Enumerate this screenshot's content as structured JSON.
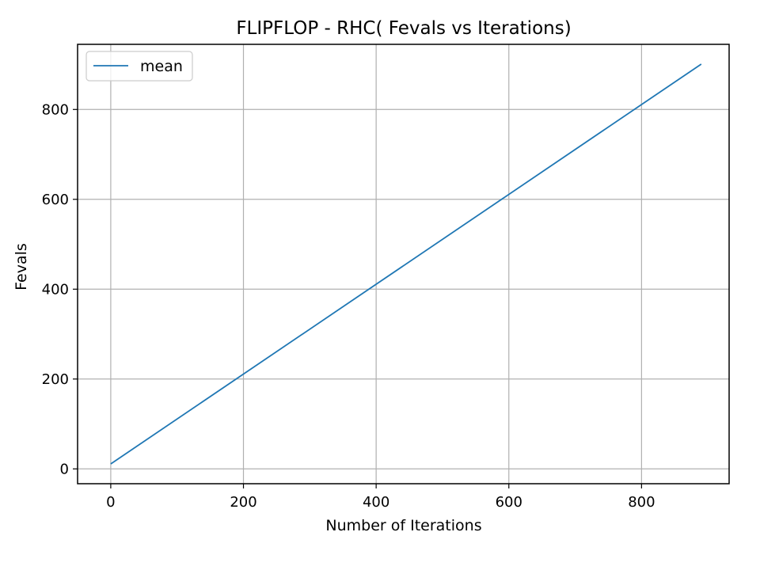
{
  "chart_data": {
    "type": "line",
    "title": "FLIPFLOP - RHC( Fevals vs Iterations)",
    "xlabel": "Number of Iterations",
    "ylabel": "Fevals",
    "xlim": [
      -50,
      932
    ],
    "ylim": [
      -33,
      945
    ],
    "x_ticks": [
      0,
      200,
      400,
      600,
      800
    ],
    "y_ticks": [
      0,
      200,
      400,
      600,
      800
    ],
    "grid": true,
    "legend_position": "top-left",
    "series": [
      {
        "name": "mean",
        "color": "#1f77b4",
        "x": [
          0,
          890
        ],
        "y": [
          11,
          901
        ]
      }
    ]
  }
}
